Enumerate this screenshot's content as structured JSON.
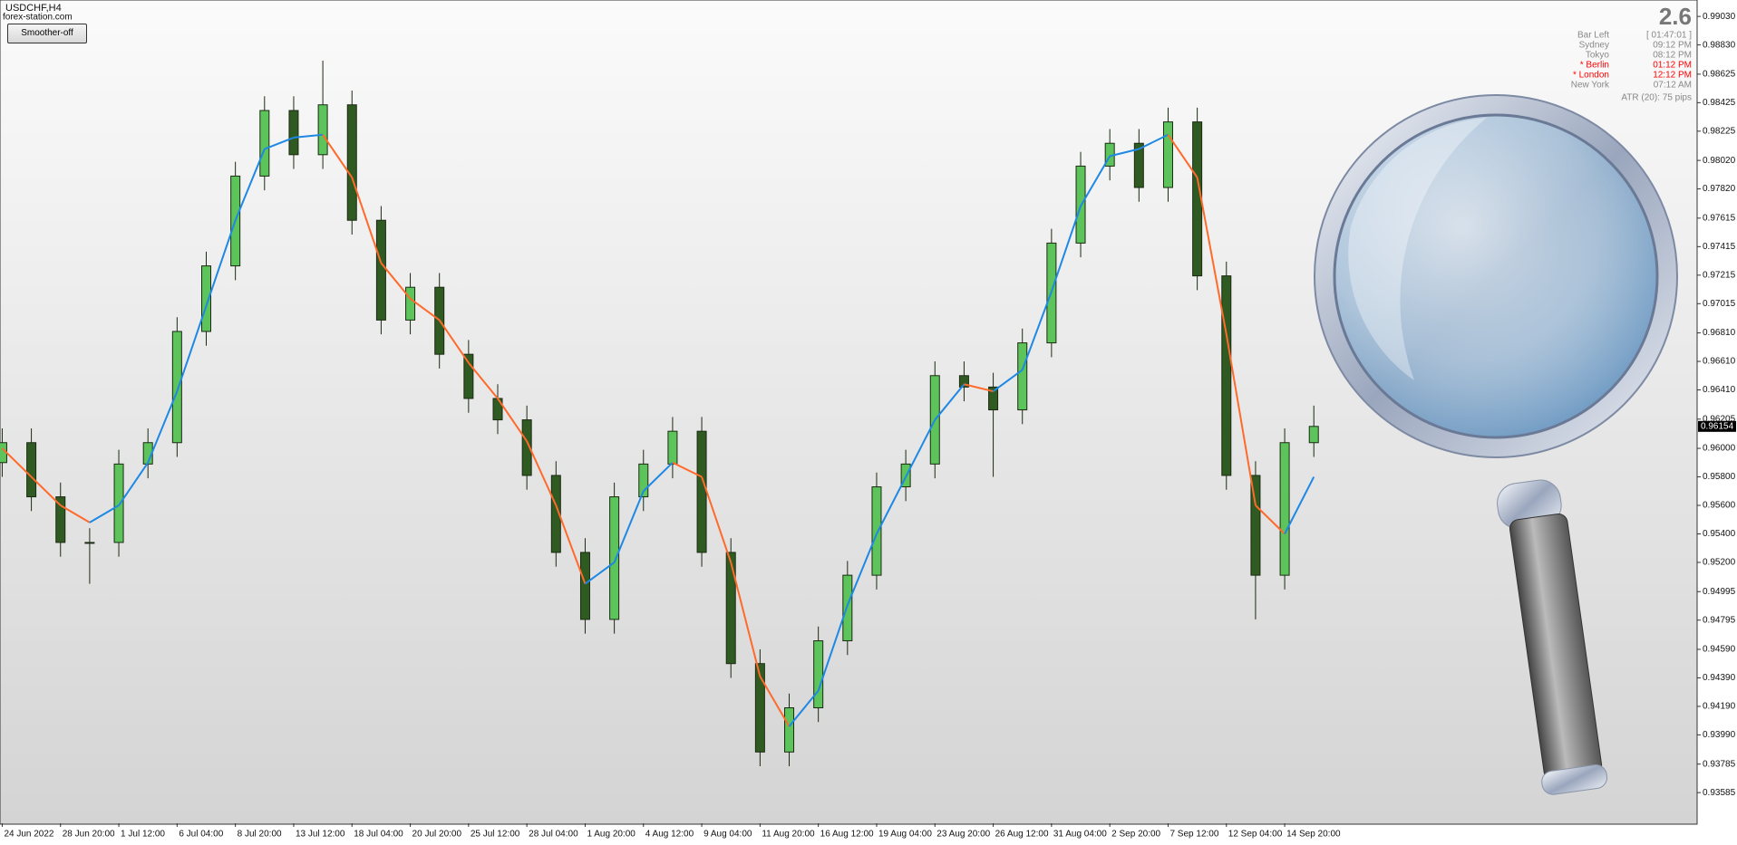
{
  "chart_data": {
    "type": "candlestick",
    "title": "USDCHF,H4",
    "subtitle": "forex-station.com",
    "button": "Smoother-off",
    "categories": [
      "24 Jun 2022",
      null,
      "28 Jun 20:00",
      null,
      "1 Jul 12:00",
      null,
      "6 Jul 04:00",
      null,
      "8 Jul 20:00",
      null,
      "13 Jul 12:00",
      null,
      "18 Jul 04:00",
      null,
      "20 Jul 20:00",
      null,
      "25 Jul 12:00",
      null,
      "28 Jul 04:00",
      null,
      "1 Aug 20:00",
      null,
      "4 Aug 12:00",
      null,
      "9 Aug 04:00",
      null,
      "11 Aug 20:00",
      null,
      "16 Aug 12:00",
      null,
      "19 Aug 04:00",
      null,
      "23 Aug 20:00",
      null,
      "26 Aug 12:00",
      null,
      "31 Aug 04:00",
      null,
      "2 Sep 20:00",
      null,
      "7 Sep 12:00",
      null,
      "12 Sep 04:00",
      null,
      "14 Sep 20:00",
      null
    ],
    "open": [
      0.959,
      0.9604,
      0.9566,
      0.9534,
      0.9534,
      0.9589,
      0.9604,
      0.9682,
      0.9728,
      0.9791,
      0.9837,
      0.9806,
      0.9841,
      0.976,
      0.969,
      0.9713,
      0.9666,
      0.9635,
      0.962,
      0.9581,
      0.9527,
      0.948,
      0.9566,
      0.9589,
      0.9612,
      0.9527,
      0.9449,
      0.9387,
      0.9418,
      0.9465,
      0.9511,
      0.9573,
      0.9589,
      0.9651,
      0.9643,
      0.9627,
      0.9674,
      0.9744,
      0.9798,
      0.9814,
      0.9783,
      0.9829,
      0.9721,
      0.9581,
      0.9511,
      0.9604
    ],
    "high": [
      0.9614,
      0.9614,
      0.9576,
      0.9544,
      0.9599,
      0.9614,
      0.9692,
      0.9738,
      0.9801,
      0.9847,
      0.9847,
      0.9872,
      0.9851,
      0.977,
      0.9723,
      0.9723,
      0.9676,
      0.9645,
      0.963,
      0.9591,
      0.9537,
      0.9576,
      0.9599,
      0.9622,
      0.9622,
      0.9537,
      0.9459,
      0.9428,
      0.9475,
      0.9521,
      0.9583,
      0.9599,
      0.9661,
      0.9661,
      0.9653,
      0.9684,
      0.9754,
      0.9808,
      0.9824,
      0.9824,
      0.9839,
      0.9839,
      0.9731,
      0.9591,
      0.9614,
      0.963
    ],
    "low": [
      0.958,
      0.9556,
      0.9524,
      0.9505,
      0.9524,
      0.9579,
      0.9594,
      0.9672,
      0.9718,
      0.9781,
      0.9796,
      0.9796,
      0.975,
      0.968,
      0.968,
      0.9656,
      0.9625,
      0.961,
      0.9571,
      0.9517,
      0.947,
      0.947,
      0.9556,
      0.9579,
      0.9517,
      0.9439,
      0.9377,
      0.9377,
      0.9408,
      0.9455,
      0.9501,
      0.9563,
      0.9579,
      0.9633,
      0.958,
      0.9617,
      0.9664,
      0.9734,
      0.9788,
      0.9773,
      0.9773,
      0.9711,
      0.9571,
      0.948,
      0.9501,
      0.9594
    ],
    "close": [
      0.9604,
      0.9566,
      0.9534,
      0.9534,
      0.9589,
      0.9604,
      0.9682,
      0.9728,
      0.9791,
      0.9837,
      0.9806,
      0.9841,
      0.976,
      0.969,
      0.9713,
      0.9666,
      0.9635,
      0.962,
      0.9581,
      0.9527,
      0.948,
      0.9566,
      0.9589,
      0.9612,
      0.9527,
      0.9449,
      0.9387,
      0.9418,
      0.9465,
      0.9511,
      0.9573,
      0.9589,
      0.9651,
      0.9643,
      0.9627,
      0.9674,
      0.9744,
      0.9798,
      0.9814,
      0.9783,
      0.9829,
      0.9721,
      0.9581,
      0.9511,
      0.9604,
      0.96154
    ],
    "up_color": "#5cc45a",
    "down_color": "#2f5a22",
    "smoother": {
      "up_color": "#1e88e5",
      "down_color": "#ff6a2b",
      "values": [
        0.96,
        0.958,
        0.956,
        0.9548,
        0.956,
        0.959,
        0.964,
        0.97,
        0.976,
        0.981,
        0.9818,
        0.982,
        0.979,
        0.973,
        0.9705,
        0.969,
        0.966,
        0.9635,
        0.9605,
        0.956,
        0.9505,
        0.952,
        0.957,
        0.959,
        0.958,
        0.952,
        0.944,
        0.9405,
        0.943,
        0.949,
        0.954,
        0.958,
        0.962,
        0.9645,
        0.964,
        0.9655,
        0.971,
        0.977,
        0.9805,
        0.981,
        0.982,
        0.979,
        0.968,
        0.956,
        0.954,
        0.958
      ]
    },
    "ylim": [
      0.9337,
      0.9913
    ],
    "yticks": [
      {
        "value": 0.9903,
        "label": "0.99030"
      },
      {
        "value": 0.9883,
        "label": "0.98830"
      },
      {
        "value": 0.98625,
        "label": "0.98625"
      },
      {
        "value": 0.98425,
        "label": "0.98425"
      },
      {
        "value": 0.98225,
        "label": "0.98225"
      },
      {
        "value": 0.9802,
        "label": "0.98020"
      },
      {
        "value": 0.9782,
        "label": "0.97820"
      },
      {
        "value": 0.97615,
        "label": "0.97615"
      },
      {
        "value": 0.97415,
        "label": "0.97415"
      },
      {
        "value": 0.97215,
        "label": "0.97215"
      },
      {
        "value": 0.97015,
        "label": "0.97015"
      },
      {
        "value": 0.9681,
        "label": "0.96810"
      },
      {
        "value": 0.9661,
        "label": "0.96610"
      },
      {
        "value": 0.9641,
        "label": "0.96410"
      },
      {
        "value": 0.96205,
        "label": "0.96205"
      },
      {
        "value": 0.96,
        "label": "0.96000"
      },
      {
        "value": 0.958,
        "label": "0.95800"
      },
      {
        "value": 0.956,
        "label": "0.95600"
      },
      {
        "value": 0.954,
        "label": "0.95400"
      },
      {
        "value": 0.952,
        "label": "0.95200"
      },
      {
        "value": 0.94995,
        "label": "0.94995"
      },
      {
        "value": 0.94795,
        "label": "0.94795"
      },
      {
        "value": 0.9459,
        "label": "0.94590"
      },
      {
        "value": 0.9439,
        "label": "0.94390"
      },
      {
        "value": 0.9419,
        "label": "0.94190"
      },
      {
        "value": 0.9399,
        "label": "0.93990"
      },
      {
        "value": 0.93785,
        "label": "0.93785"
      },
      {
        "value": 0.93585,
        "label": "0.93585"
      }
    ],
    "current_price": {
      "value": 0.96154,
      "label": "0.96154"
    },
    "info": {
      "value": 2.6,
      "rows": [
        {
          "label": "Bar Left",
          "time": "[ 01:47:01 ]",
          "color": "#888888"
        },
        {
          "label": "Sydney",
          "time": "09:12 PM",
          "color": "#888888"
        },
        {
          "label": "Tokyo",
          "time": "08:12 PM",
          "color": "#888888"
        },
        {
          "label": "* Berlin",
          "time": "01:12 PM",
          "color": "#ff0000"
        },
        {
          "label": "* London",
          "time": "12:12 PM",
          "color": "#ff0000"
        },
        {
          "label": "New York",
          "time": "07:12 AM",
          "color": "#888888"
        }
      ],
      "atr": "ATR (20): 75 pips"
    }
  }
}
